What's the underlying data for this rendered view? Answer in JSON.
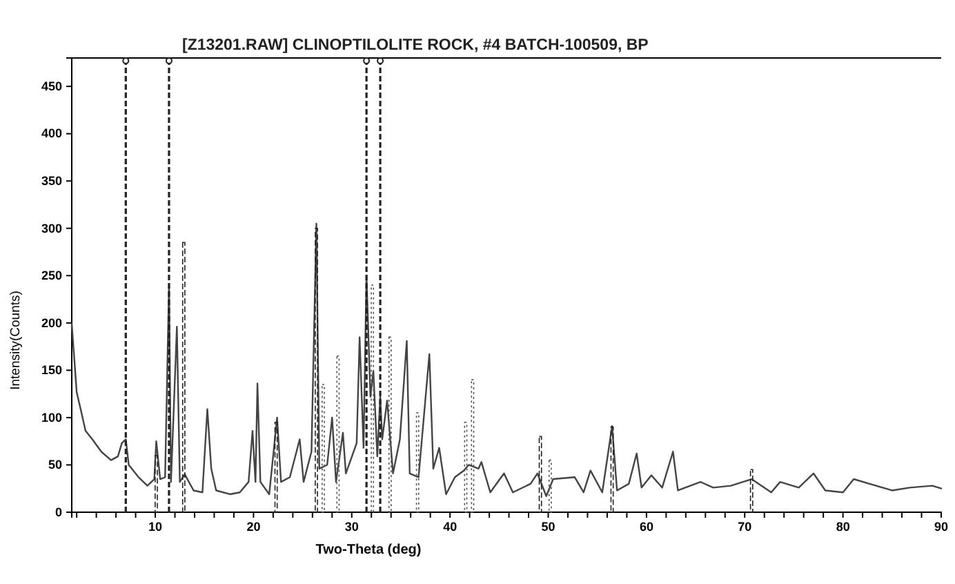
{
  "chart_data": {
    "type": "line",
    "title": "[Z13201.RAW] CLINOPTILOLITE ROCK, #4 BATCH-100509, BP",
    "xlabel": "Two-Theta (deg)",
    "ylabel": "Intensity(Counts)",
    "xlim": [
      1.5,
      90
    ],
    "ylim": [
      0,
      480
    ],
    "xticks": [
      {
        "value": 2,
        "label": null
      },
      {
        "value": 4,
        "label": null
      },
      {
        "value": 6,
        "label": null
      },
      {
        "value": 8,
        "label": null
      },
      10,
      {
        "value": 12,
        "label": null
      },
      {
        "value": 14,
        "label": null
      },
      {
        "value": 16,
        "label": null
      },
      {
        "value": 18,
        "label": null
      },
      20,
      {
        "value": 22,
        "label": null
      },
      {
        "value": 24,
        "label": null
      },
      {
        "value": 26,
        "label": null
      },
      {
        "value": 28,
        "label": null
      },
      30,
      {
        "value": 32,
        "label": null
      },
      {
        "value": 34,
        "label": null
      },
      {
        "value": 36,
        "label": null
      },
      {
        "value": 38,
        "label": null
      },
      40,
      {
        "value": 42,
        "label": null
      },
      {
        "value": 44,
        "label": null
      },
      {
        "value": 46,
        "label": null
      },
      {
        "value": 48,
        "label": null
      },
      50,
      {
        "value": 52,
        "label": null
      },
      {
        "value": 54,
        "label": null
      },
      {
        "value": 56,
        "label": null
      },
      {
        "value": 58,
        "label": null
      },
      60,
      {
        "value": 62,
        "label": null
      },
      {
        "value": 64,
        "label": null
      },
      {
        "value": 66,
        "label": null
      },
      {
        "value": 68,
        "label": null
      },
      70,
      {
        "value": 72,
        "label": null
      },
      {
        "value": 74,
        "label": null
      },
      {
        "value": 76,
        "label": null
      },
      {
        "value": 78,
        "label": null
      },
      80,
      {
        "value": 82,
        "label": null
      },
      {
        "value": 84,
        "label": null
      },
      {
        "value": 86,
        "label": null
      },
      {
        "value": 88,
        "label": null
      },
      90
    ],
    "yticks": [
      0,
      50,
      100,
      150,
      200,
      250,
      300,
      350,
      400,
      450
    ],
    "series": [
      {
        "color": "#444444",
        "line_style": "solid",
        "x": [
          1.5,
          2.0,
          2.4,
          2.9,
          3.6,
          4.5,
          5.5,
          6.2,
          6.6,
          7.0,
          7.3,
          8.3,
          9.2,
          9.9,
          10.1,
          10.5,
          11.0,
          11.4,
          11.6,
          12.2,
          12.5,
          13.0,
          13.9,
          14.8,
          15.3,
          15.7,
          16.2,
          17.6,
          18.6,
          19.5,
          19.9,
          20.2,
          20.4,
          20.7,
          21.6,
          22.4,
          22.8,
          23.7,
          24.7,
          25.1,
          25.9,
          26.4,
          26.7,
          27.5,
          28.0,
          28.4,
          29.1,
          29.4,
          30.5,
          30.8,
          31.2,
          31.5,
          31.9,
          32.2,
          32.6,
          32.9,
          33.1,
          33.6,
          34.2,
          34.9,
          35.6,
          35.9,
          36.8,
          37.9,
          38.3,
          38.9,
          39.6,
          40.5,
          41.4,
          41.9,
          42.9,
          43.2,
          44.1,
          45.5,
          46.4,
          48.2,
          48.9,
          49.8,
          50.5,
          52.7,
          53.6,
          54.3,
          55.5,
          56.5,
          57.0,
          58.2,
          59.0,
          59.5,
          60.5,
          61.6,
          62.7,
          63.2,
          65.5,
          66.8,
          68.6,
          70.7,
          72.7,
          73.6,
          75.5,
          77.0,
          78.2,
          80.0,
          81.1,
          82.7,
          85.0,
          86.8,
          89.1,
          90
        ],
        "values": [
          199,
          127,
          109,
          86,
          77,
          64,
          55,
          59,
          73,
          77,
          50,
          37,
          28,
          35,
          75,
          35,
          37,
          240,
          32,
          196,
          32,
          40,
          23,
          21,
          109,
          46,
          23,
          19,
          21,
          32,
          86,
          32,
          136,
          32,
          19,
          100,
          32,
          37,
          77,
          32,
          64,
          305,
          46,
          50,
          100,
          32,
          84,
          41,
          73,
          185,
          68,
          250,
          122,
          149,
          59,
          122,
          77,
          118,
          41,
          77,
          181,
          41,
          37,
          167,
          46,
          68,
          19,
          37,
          44,
          50,
          46,
          53,
          21,
          41,
          21,
          30,
          41,
          17,
          35,
          37,
          21,
          44,
          21,
          91,
          23,
          30,
          62,
          26,
          39,
          26,
          64,
          23,
          32,
          26,
          28,
          35,
          21,
          32,
          26,
          41,
          23,
          21,
          35,
          30,
          23,
          26,
          28,
          25
        ]
      },
      {
        "type": "lollipop",
        "color": "#222222",
        "line_style": "dashed",
        "x": [
          7.0,
          11.4,
          31.5,
          32.9
        ],
        "values": [
          477,
          477,
          477,
          477
        ]
      },
      {
        "type": "bar",
        "color": "#222222",
        "line_style": "dashed",
        "x": [
          10.1,
          12.9,
          22.3,
          26.4,
          49.2,
          56.5,
          70.7
        ],
        "values": [
          60,
          285,
          95,
          300,
          80,
          90,
          45
        ]
      },
      {
        "type": "bar",
        "color": "#555555",
        "line_style": "dotted",
        "x": [
          27.1,
          28.6,
          32.1,
          33.9,
          36.7,
          41.6,
          42.3,
          50.2
        ],
        "values": [
          135,
          165,
          240,
          185,
          105,
          95,
          140,
          55
        ]
      }
    ]
  }
}
